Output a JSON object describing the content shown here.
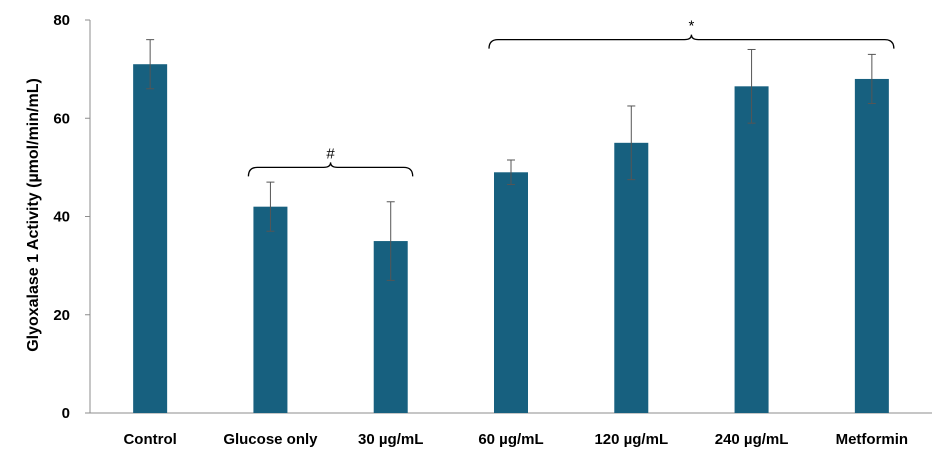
{
  "chart_data": {
    "type": "bar",
    "title": "",
    "xlabel": "",
    "ylabel": "Glyoxalase 1 Activity (µmol/min/mL)",
    "categories": [
      "Control",
      "Glucose only",
      "30 µg/mL",
      "60 µg/mL",
      "120  µg/mL",
      "240 µg/mL",
      "Metformin"
    ],
    "values": [
      71,
      42,
      35,
      49,
      55,
      66.5,
      68
    ],
    "errors": [
      5,
      5,
      8,
      2.5,
      7.5,
      7.5,
      5
    ],
    "ylim": [
      0,
      80
    ],
    "yticks": [
      0,
      20,
      40,
      60,
      80
    ],
    "grid": false,
    "bar_color": "#17607f",
    "annotations": [
      {
        "label": "#",
        "from": "Glucose only",
        "to": "30 µg/mL",
        "level": 50
      },
      {
        "label": "*",
        "from": "60 µg/mL",
        "to": "Metformin",
        "level": 76
      }
    ]
  }
}
